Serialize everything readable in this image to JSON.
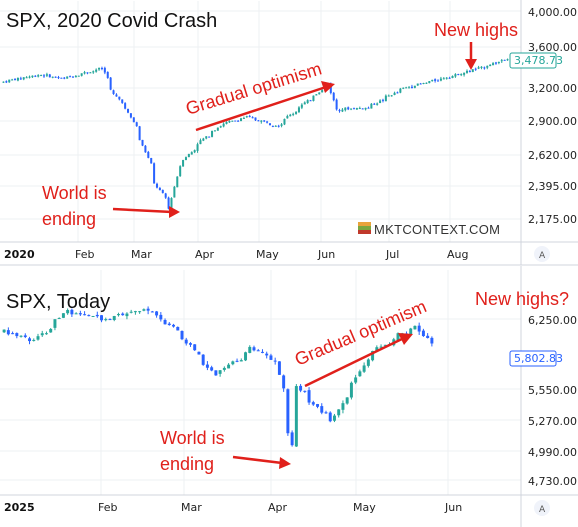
{
  "colors": {
    "up": "#26a69a",
    "down": "#2962ff",
    "annotation": "#e0201b",
    "grid": "#eef0f3",
    "axis": "#d1d4dc"
  },
  "chart_data": [
    {
      "type": "candlestick",
      "title": "SPX, 2020 Covid Crash",
      "x_labels": [
        "2020",
        "Feb",
        "Mar",
        "Apr",
        "May",
        "Jun",
        "Jul",
        "Aug"
      ],
      "y_ticks": [
        "4,000.00",
        "3,600.00",
        "3,200.00",
        "2,900.00",
        "2,620.00",
        "2,395.00",
        "2,175.00"
      ],
      "ylim": [
        2050,
        4000
      ],
      "y_scale": "log",
      "last_value": "3,478.73",
      "watermark": "MKTCONTEXT.COM",
      "auto_label": "A",
      "annotations": {
        "bottom": [
          "World is",
          "ending"
        ],
        "middle": "Gradual optimism",
        "top": "New highs"
      },
      "anchors": [
        [
          "2020-01-02",
          3250
        ],
        [
          "2020-01-20",
          3320
        ],
        [
          "2020-01-31",
          3280
        ],
        [
          "2020-02-19",
          3380
        ],
        [
          "2020-02-25",
          3130
        ],
        [
          "2020-03-02",
          3000
        ],
        [
          "2020-03-09",
          2740
        ],
        [
          "2020-03-16",
          2410
        ],
        [
          "2020-03-23",
          2240
        ],
        [
          "2020-03-27",
          2540
        ],
        [
          "2020-04-08",
          2750
        ],
        [
          "2020-04-17",
          2870
        ],
        [
          "2020-04-29",
          2930
        ],
        [
          "2020-05-14",
          2860
        ],
        [
          "2020-06-08",
          3230
        ],
        [
          "2020-06-11",
          3000
        ],
        [
          "2020-06-26",
          3010
        ],
        [
          "2020-07-14",
          3190
        ],
        [
          "2020-08-03",
          3290
        ],
        [
          "2020-08-20",
          3385
        ],
        [
          "2020-09-02",
          3480
        ]
      ]
    },
    {
      "type": "candlestick",
      "title": "SPX, Today",
      "x_labels": [
        "2025",
        "Feb",
        "Mar",
        "Apr",
        "May",
        "Jun"
      ],
      "y_ticks": [
        "6,250.00",
        "5,550.00",
        "5,270.00",
        "4,990.00",
        "4,730.00"
      ],
      "ylim": [
        4650,
        6400
      ],
      "y_scale": "log",
      "last_value": "5,802.83",
      "auto_label": "A",
      "annotations": {
        "bottom": [
          "World is",
          "ending"
        ],
        "middle": "Gradual optimism",
        "top": "New highs?"
      },
      "anchors": [
        [
          "2025-01-02",
          5920
        ],
        [
          "2025-01-13",
          5840
        ],
        [
          "2025-01-23",
          6100
        ],
        [
          "2025-02-04",
          6030
        ],
        [
          "2025-02-19",
          6130
        ],
        [
          "2025-03-03",
          5850
        ],
        [
          "2025-03-13",
          5540
        ],
        [
          "2025-03-25",
          5770
        ],
        [
          "2025-04-02",
          5670
        ],
        [
          "2025-04-08",
          4980
        ],
        [
          "2025-04-09",
          5460
        ],
        [
          "2025-04-21",
          5160
        ],
        [
          "2025-05-02",
          5690
        ],
        [
          "2025-05-13",
          5890
        ],
        [
          "2025-05-19",
          5960
        ],
        [
          "2025-05-23",
          5802.83
        ]
      ]
    }
  ]
}
